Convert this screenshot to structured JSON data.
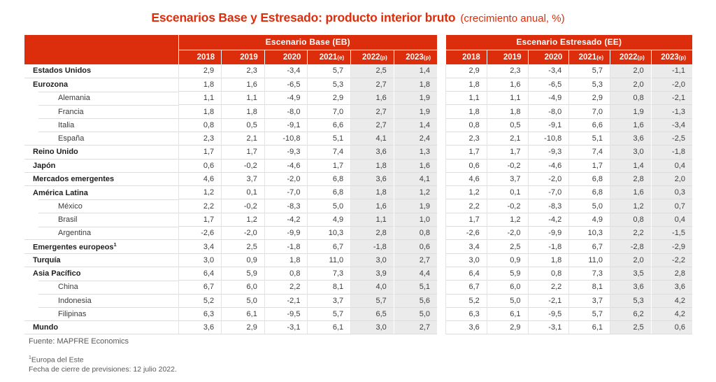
{
  "title": {
    "main": "Escenarios Base y Estresado: producto interior bruto",
    "sub": "(crecimiento anual, %)"
  },
  "colors": {
    "red": "#DC2E0C",
    "shaded_column": "#EBEBEB",
    "row_line": "#DCDCDC",
    "value_text": "#3C3C3C"
  },
  "header": {
    "base_band": "Escenario Base (EB)",
    "stressed_band": "Escenario Estresado (EE)",
    "years": [
      {
        "label": "2018",
        "suffix": ""
      },
      {
        "label": "2019",
        "suffix": ""
      },
      {
        "label": "2020",
        "suffix": ""
      },
      {
        "label": "2021",
        "suffix": "(e)"
      },
      {
        "label": "2022",
        "suffix": "(p)"
      },
      {
        "label": "2023",
        "suffix": "(p)"
      }
    ]
  },
  "footer": {
    "source": "Fuente: MAPFRE Economics",
    "note_sup": "1",
    "note_text": "Europa del Este",
    "closing": "Fecha de cierre de previsiones: 12 julio 2022."
  },
  "chart_data": {
    "type": "table",
    "title": "Escenarios Base y Estresado: producto interior bruto (crecimiento anual, %)",
    "columns": [
      "2018",
      "2019",
      "2020",
      "2021(e)",
      "2022(p)",
      "2023(p)"
    ],
    "groups": [
      {
        "key": "eb",
        "name": "Escenario Base (EB)"
      },
      {
        "key": "ee",
        "name": "Escenario Estresado (EE)"
      }
    ],
    "rows": [
      {
        "label": "Estados Unidos",
        "level": 0,
        "eb": [
          2.9,
          2.3,
          -3.4,
          5.7,
          2.5,
          1.4
        ],
        "ee": [
          2.9,
          2.3,
          -3.4,
          5.7,
          2.0,
          -1.1
        ]
      },
      {
        "label": "Eurozona",
        "level": 0,
        "eb": [
          1.8,
          1.6,
          -6.5,
          5.3,
          2.7,
          1.8
        ],
        "ee": [
          1.8,
          1.6,
          -6.5,
          5.3,
          2.0,
          -2.0
        ]
      },
      {
        "label": "Alemania",
        "level": 1,
        "eb": [
          1.1,
          1.1,
          -4.9,
          2.9,
          1.6,
          1.9
        ],
        "ee": [
          1.1,
          1.1,
          -4.9,
          2.9,
          0.8,
          -2.1
        ]
      },
      {
        "label": "Francia",
        "level": 1,
        "eb": [
          1.8,
          1.8,
          -8.0,
          7.0,
          2.7,
          1.9
        ],
        "ee": [
          1.8,
          1.8,
          -8.0,
          7.0,
          1.9,
          -1.3
        ]
      },
      {
        "label": "Italia",
        "level": 1,
        "eb": [
          0.8,
          0.5,
          -9.1,
          6.6,
          2.7,
          1.4
        ],
        "ee": [
          0.8,
          0.5,
          -9.1,
          6.6,
          1.6,
          -3.4
        ]
      },
      {
        "label": "España",
        "level": 1,
        "eb": [
          2.3,
          2.1,
          -10.8,
          5.1,
          4.1,
          2.4
        ],
        "ee": [
          2.3,
          2.1,
          -10.8,
          5.1,
          3.6,
          -2.5
        ]
      },
      {
        "label": "Reino Unido",
        "level": 0,
        "eb": [
          1.7,
          1.7,
          -9.3,
          7.4,
          3.6,
          1.3
        ],
        "ee": [
          1.7,
          1.7,
          -9.3,
          7.4,
          3.0,
          -1.8
        ]
      },
      {
        "label": "Japón",
        "level": 0,
        "eb": [
          0.6,
          -0.2,
          -4.6,
          1.7,
          1.8,
          1.6
        ],
        "ee": [
          0.6,
          -0.2,
          -4.6,
          1.7,
          1.4,
          0.4
        ]
      },
      {
        "label": "Mercados emergentes",
        "level": 0,
        "eb": [
          4.6,
          3.7,
          -2.0,
          6.8,
          3.6,
          4.1
        ],
        "ee": [
          4.6,
          3.7,
          -2.0,
          6.8,
          2.8,
          2.0
        ]
      },
      {
        "label": "América Latina",
        "level": 0,
        "eb": [
          1.2,
          0.1,
          -7.0,
          6.8,
          1.8,
          1.2
        ],
        "ee": [
          1.2,
          0.1,
          -7.0,
          6.8,
          1.6,
          0.3
        ]
      },
      {
        "label": "México",
        "level": 1,
        "eb": [
          2.2,
          -0.2,
          -8.3,
          5.0,
          1.6,
          1.9
        ],
        "ee": [
          2.2,
          -0.2,
          -8.3,
          5.0,
          1.2,
          0.7
        ]
      },
      {
        "label": "Brasil",
        "level": 1,
        "eb": [
          1.7,
          1.2,
          -4.2,
          4.9,
          1.1,
          1.0
        ],
        "ee": [
          1.7,
          1.2,
          -4.2,
          4.9,
          0.8,
          0.4
        ]
      },
      {
        "label": "Argentina",
        "level": 1,
        "eb": [
          -2.6,
          -2.0,
          -9.9,
          10.3,
          2.8,
          0.8
        ],
        "ee": [
          -2.6,
          -2.0,
          -9.9,
          10.3,
          2.2,
          -1.5
        ]
      },
      {
        "label": "Emergentes europeos",
        "level": 0,
        "sup": "1",
        "eb": [
          3.4,
          2.5,
          -1.8,
          6.7,
          -1.8,
          0.6
        ],
        "ee": [
          3.4,
          2.5,
          -1.8,
          6.7,
          -2.8,
          -2.9
        ]
      },
      {
        "label": "Turquía",
        "level": 0,
        "eb": [
          3.0,
          0.9,
          1.8,
          11.0,
          3.0,
          2.7
        ],
        "ee": [
          3.0,
          0.9,
          1.8,
          11.0,
          2.0,
          -2.2
        ]
      },
      {
        "label": "Asia Pacífico",
        "level": 0,
        "eb": [
          6.4,
          5.9,
          0.8,
          7.3,
          3.9,
          4.4
        ],
        "ee": [
          6.4,
          5.9,
          0.8,
          7.3,
          3.5,
          2.8
        ]
      },
      {
        "label": "China",
        "level": 1,
        "eb": [
          6.7,
          6.0,
          2.2,
          8.1,
          4.0,
          5.1
        ],
        "ee": [
          6.7,
          6.0,
          2.2,
          8.1,
          3.6,
          3.6
        ]
      },
      {
        "label": "Indonesia",
        "level": 1,
        "eb": [
          5.2,
          5.0,
          -2.1,
          3.7,
          5.7,
          5.6
        ],
        "ee": [
          5.2,
          5.0,
          -2.1,
          3.7,
          5.3,
          4.2
        ]
      },
      {
        "label": "Filipinas",
        "level": 1,
        "eb": [
          6.3,
          6.1,
          -9.5,
          5.7,
          6.5,
          5.0
        ],
        "ee": [
          6.3,
          6.1,
          -9.5,
          5.7,
          6.2,
          4.2
        ]
      },
      {
        "label": "Mundo",
        "level": 0,
        "eb": [
          3.6,
          2.9,
          -3.1,
          6.1,
          3.0,
          2.7
        ],
        "ee": [
          3.6,
          2.9,
          -3.1,
          6.1,
          2.5,
          0.6
        ]
      }
    ]
  }
}
